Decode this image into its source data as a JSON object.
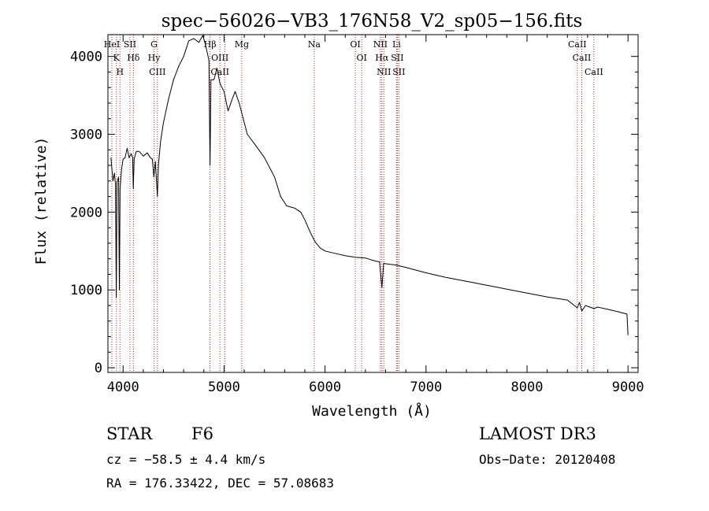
{
  "chart_data": {
    "type": "line",
    "title": "spec−56026−VB3_176N58_V2_sp05−156.fits",
    "xlabel": "Wavelength (Å)",
    "ylabel": "Flux (relative)",
    "xlim": [
      3850,
      9100
    ],
    "ylim": [
      -60,
      4280
    ],
    "xticks": [
      4000,
      5000,
      6000,
      7000,
      8000,
      9000
    ],
    "yticks": [
      0,
      1000,
      2000,
      3000,
      4000
    ],
    "colors": {
      "line": "#000000",
      "markers": "#b03030"
    },
    "series": [
      {
        "name": "flux",
        "points": [
          [
            3880,
            2700
          ],
          [
            3900,
            2400
          ],
          [
            3915,
            2500
          ],
          [
            3925,
            2350
          ],
          [
            3933,
            900
          ],
          [
            3940,
            2380
          ],
          [
            3955,
            2450
          ],
          [
            3963,
            1000
          ],
          [
            3970,
            2300
          ],
          [
            3985,
            2550
          ],
          [
            4000,
            2680
          ],
          [
            4020,
            2700
          ],
          [
            4040,
            2820
          ],
          [
            4060,
            2700
          ],
          [
            4080,
            2750
          ],
          [
            4095,
            2700
          ],
          [
            4101,
            2300
          ],
          [
            4110,
            2680
          ],
          [
            4130,
            2780
          ],
          [
            4160,
            2780
          ],
          [
            4200,
            2720
          ],
          [
            4240,
            2760
          ],
          [
            4270,
            2700
          ],
          [
            4290,
            2680
          ],
          [
            4305,
            2450
          ],
          [
            4320,
            2650
          ],
          [
            4340,
            2200
          ],
          [
            4350,
            2600
          ],
          [
            4370,
            2900
          ],
          [
            4400,
            3150
          ],
          [
            4450,
            3450
          ],
          [
            4500,
            3700
          ],
          [
            4550,
            3870
          ],
          [
            4600,
            4000
          ],
          [
            4650,
            4200
          ],
          [
            4700,
            4230
          ],
          [
            4750,
            4180
          ],
          [
            4790,
            4270
          ],
          [
            4820,
            4130
          ],
          [
            4850,
            3950
          ],
          [
            4861,
            2600
          ],
          [
            4870,
            3700
          ],
          [
            4900,
            3700
          ],
          [
            4930,
            3850
          ],
          [
            4960,
            3650
          ],
          [
            5000,
            3550
          ],
          [
            5040,
            3300
          ],
          [
            5080,
            3450
          ],
          [
            5110,
            3550
          ],
          [
            5150,
            3400
          ],
          [
            5190,
            3200
          ],
          [
            5230,
            3000
          ],
          [
            5300,
            2880
          ],
          [
            5400,
            2700
          ],
          [
            5500,
            2450
          ],
          [
            5560,
            2200
          ],
          [
            5620,
            2080
          ],
          [
            5700,
            2050
          ],
          [
            5760,
            2000
          ],
          [
            5800,
            1900
          ],
          [
            5850,
            1750
          ],
          [
            5900,
            1620
          ],
          [
            5950,
            1540
          ],
          [
            6000,
            1500
          ],
          [
            6100,
            1470
          ],
          [
            6200,
            1440
          ],
          [
            6300,
            1420
          ],
          [
            6400,
            1410
          ],
          [
            6500,
            1370
          ],
          [
            6540,
            1360
          ],
          [
            6563,
            1030
          ],
          [
            6580,
            1340
          ],
          [
            6700,
            1320
          ],
          [
            6800,
            1290
          ],
          [
            7000,
            1220
          ],
          [
            7200,
            1160
          ],
          [
            7400,
            1110
          ],
          [
            7600,
            1060
          ],
          [
            7800,
            1010
          ],
          [
            8000,
            960
          ],
          [
            8200,
            910
          ],
          [
            8400,
            870
          ],
          [
            8498,
            770
          ],
          [
            8520,
            840
          ],
          [
            8542,
            730
          ],
          [
            8580,
            800
          ],
          [
            8662,
            760
          ],
          [
            8700,
            780
          ],
          [
            8800,
            750
          ],
          [
            8900,
            720
          ],
          [
            8990,
            690
          ],
          [
            9000,
            420
          ]
        ]
      }
    ],
    "line_markers": [
      {
        "wave": 3934,
        "labels": [
          "K"
        ]
      },
      {
        "wave": 3889,
        "labels": [
          "HeI"
        ]
      },
      {
        "wave": 3969,
        "labels": [
          "H"
        ]
      },
      {
        "wave": 4068,
        "labels": [
          "SII"
        ]
      },
      {
        "wave": 4102,
        "labels": [
          "Hδ"
        ]
      },
      {
        "wave": 4307,
        "labels": [
          "G",
          "Hy"
        ]
      },
      {
        "wave": 4340,
        "labels": [
          "CIII"
        ]
      },
      {
        "wave": 4861,
        "labels": [
          "Hβ"
        ]
      },
      {
        "wave": 4959,
        "labels": [
          "OIII",
          "CaII"
        ]
      },
      {
        "wave": 5007,
        "labels": []
      },
      {
        "wave": 5175,
        "labels": [
          "Mg"
        ]
      },
      {
        "wave": 5893,
        "labels": [
          "Na"
        ]
      },
      {
        "wave": 6300,
        "labels": [
          "OI"
        ]
      },
      {
        "wave": 6363,
        "labels": [
          "OI"
        ]
      },
      {
        "wave": 6548,
        "labels": [
          "NII"
        ]
      },
      {
        "wave": 6563,
        "labels": [
          "Hα"
        ]
      },
      {
        "wave": 6583,
        "labels": [
          "NII"
        ]
      },
      {
        "wave": 6708,
        "labels": [
          "Li"
        ]
      },
      {
        "wave": 6716,
        "labels": [
          "SII"
        ]
      },
      {
        "wave": 6731,
        "labels": [
          "SII"
        ]
      },
      {
        "wave": 8498,
        "labels": [
          "CaII"
        ]
      },
      {
        "wave": 8542,
        "labels": [
          "CaII"
        ]
      },
      {
        "wave": 8662,
        "labels": [
          "CaII"
        ]
      }
    ]
  },
  "info": {
    "class_label": "STAR",
    "subclass": "F6",
    "survey": "LAMOST DR3",
    "cz": "cz = −58.5 ± 4.4 km/s",
    "obs_date": "Obs−Date: 20120408",
    "coords": "RA = 176.33422, DEC =  57.08683"
  }
}
